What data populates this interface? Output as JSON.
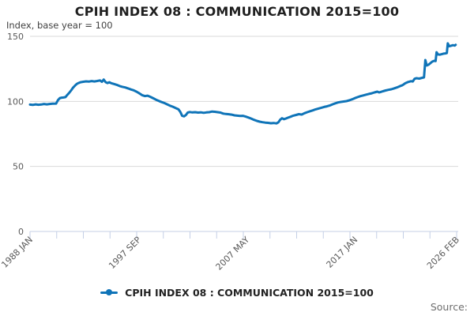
{
  "chart": {
    "title": "CPIH INDEX 08 : COMMUNICATION 2015=100",
    "subtitle": "Index, base year = 100",
    "legend_label": "CPIH INDEX 08 : COMMUNICATION 2015=100",
    "source_label": "Source:"
  },
  "chart_data": {
    "type": "line",
    "title": "CPIH INDEX 08 : COMMUNICATION 2015=100",
    "subtitle": "Index, base year = 100",
    "xlabel": "",
    "ylabel": "Index, base year = 100",
    "legend_entries": [
      "CPIH INDEX 08 : COMMUNICATION 2015=100"
    ],
    "legend_position": "bottom-center",
    "grid": "horizontal-only",
    "xlim": [
      1988.0,
      2026.083
    ],
    "ylim": [
      0,
      150
    ],
    "yticks": [
      0,
      50,
      100,
      150
    ],
    "xticks": [
      {
        "label": "1988 JAN",
        "year": 1988.0
      },
      {
        "label": "1997 SEP",
        "year": 1997.667
      },
      {
        "label": "2007 MAY",
        "year": 2007.333
      },
      {
        "label": "2017 JAN",
        "year": 2017.0
      },
      {
        "label": "2026 FEB",
        "year": 2026.083
      }
    ],
    "minor_tick_count": 17,
    "colors": {
      "line": "#0f74b8",
      "grid": "#d9d9d9",
      "axis": "#c4cfe6",
      "tick_text": "#595959",
      "title_text": "#1f1f1f"
    },
    "series": [
      {
        "name": "CPIH INDEX 08 : COMMUNICATION 2015=100",
        "points": [
          [
            1988.0,
            97.5
          ],
          [
            1988.25,
            97.3
          ],
          [
            1988.5,
            97.7
          ],
          [
            1988.75,
            97.4
          ],
          [
            1989.0,
            97.6
          ],
          [
            1989.25,
            98.0
          ],
          [
            1989.5,
            97.7
          ],
          [
            1989.75,
            98.0
          ],
          [
            1990.0,
            98.2
          ],
          [
            1990.33,
            98.3
          ],
          [
            1990.5,
            101.0
          ],
          [
            1990.67,
            102.6
          ],
          [
            1990.83,
            102.9
          ],
          [
            1991.0,
            103.0
          ],
          [
            1991.17,
            103.3
          ],
          [
            1991.33,
            105.0
          ],
          [
            1991.5,
            106.6
          ],
          [
            1991.67,
            108.4
          ],
          [
            1991.83,
            110.4
          ],
          [
            1992.0,
            112.0
          ],
          [
            1992.17,
            113.4
          ],
          [
            1992.33,
            114.1
          ],
          [
            1992.5,
            114.7
          ],
          [
            1992.75,
            115.1
          ],
          [
            1993.0,
            115.4
          ],
          [
            1993.25,
            115.2
          ],
          [
            1993.5,
            115.6
          ],
          [
            1993.75,
            115.3
          ],
          [
            1994.0,
            115.7
          ],
          [
            1994.25,
            116.1
          ],
          [
            1994.42,
            115.0
          ],
          [
            1994.58,
            116.8
          ],
          [
            1994.75,
            114.8
          ],
          [
            1994.92,
            114.1
          ],
          [
            1995.08,
            114.7
          ],
          [
            1995.25,
            114.0
          ],
          [
            1995.5,
            113.4
          ],
          [
            1995.75,
            112.7
          ],
          [
            1996.0,
            111.8
          ],
          [
            1996.25,
            111.2
          ],
          [
            1996.5,
            110.7
          ],
          [
            1996.75,
            110.0
          ],
          [
            1997.0,
            109.2
          ],
          [
            1997.25,
            108.5
          ],
          [
            1997.5,
            107.5
          ],
          [
            1997.75,
            106.2
          ],
          [
            1998.0,
            104.8
          ],
          [
            1998.25,
            104.1
          ],
          [
            1998.5,
            104.4
          ],
          [
            1998.75,
            103.5
          ],
          [
            1999.0,
            102.4
          ],
          [
            1999.25,
            101.3
          ],
          [
            1999.5,
            100.3
          ],
          [
            1999.75,
            99.5
          ],
          [
            2000.0,
            98.7
          ],
          [
            2000.25,
            97.7
          ],
          [
            2000.5,
            96.7
          ],
          [
            2000.75,
            95.9
          ],
          [
            2001.0,
            94.9
          ],
          [
            2001.25,
            93.9
          ],
          [
            2001.42,
            91.8
          ],
          [
            2001.58,
            88.9
          ],
          [
            2001.75,
            88.5
          ],
          [
            2001.92,
            89.6
          ],
          [
            2002.08,
            91.4
          ],
          [
            2002.25,
            91.8
          ],
          [
            2002.5,
            91.5
          ],
          [
            2002.75,
            91.7
          ],
          [
            2003.0,
            91.4
          ],
          [
            2003.25,
            91.6
          ],
          [
            2003.5,
            91.2
          ],
          [
            2003.75,
            91.5
          ],
          [
            2004.0,
            91.7
          ],
          [
            2004.25,
            92.2
          ],
          [
            2004.5,
            92.0
          ],
          [
            2004.75,
            91.7
          ],
          [
            2005.0,
            91.4
          ],
          [
            2005.25,
            90.6
          ],
          [
            2005.5,
            90.3
          ],
          [
            2005.75,
            90.1
          ],
          [
            2006.0,
            89.8
          ],
          [
            2006.25,
            89.3
          ],
          [
            2006.5,
            89.0
          ],
          [
            2006.75,
            88.8
          ],
          [
            2007.0,
            88.9
          ],
          [
            2007.25,
            88.3
          ],
          [
            2007.5,
            87.6
          ],
          [
            2007.75,
            86.8
          ],
          [
            2008.0,
            85.8
          ],
          [
            2008.25,
            85.0
          ],
          [
            2008.5,
            84.4
          ],
          [
            2008.75,
            84.0
          ],
          [
            2009.0,
            83.7
          ],
          [
            2009.25,
            83.5
          ],
          [
            2009.5,
            83.2
          ],
          [
            2009.75,
            83.4
          ],
          [
            2010.0,
            83.1
          ],
          [
            2010.17,
            83.9
          ],
          [
            2010.33,
            85.9
          ],
          [
            2010.5,
            87.0
          ],
          [
            2010.67,
            86.3
          ],
          [
            2010.83,
            86.8
          ],
          [
            2011.0,
            87.4
          ],
          [
            2011.25,
            88.2
          ],
          [
            2011.5,
            89.0
          ],
          [
            2011.75,
            89.6
          ],
          [
            2012.0,
            90.2
          ],
          [
            2012.25,
            89.9
          ],
          [
            2012.5,
            90.9
          ],
          [
            2012.75,
            91.7
          ],
          [
            2013.0,
            92.4
          ],
          [
            2013.25,
            93.1
          ],
          [
            2013.5,
            93.9
          ],
          [
            2013.75,
            94.5
          ],
          [
            2014.0,
            95.1
          ],
          [
            2014.25,
            95.7
          ],
          [
            2014.5,
            96.2
          ],
          [
            2014.75,
            96.8
          ],
          [
            2015.0,
            97.7
          ],
          [
            2015.25,
            98.5
          ],
          [
            2015.5,
            99.2
          ],
          [
            2015.75,
            99.6
          ],
          [
            2016.0,
            99.9
          ],
          [
            2016.25,
            100.2
          ],
          [
            2016.5,
            100.8
          ],
          [
            2016.75,
            101.6
          ],
          [
            2017.0,
            102.5
          ],
          [
            2017.25,
            103.3
          ],
          [
            2017.5,
            104.0
          ],
          [
            2017.75,
            104.6
          ],
          [
            2018.0,
            105.2
          ],
          [
            2018.25,
            105.7
          ],
          [
            2018.5,
            106.2
          ],
          [
            2018.75,
            106.9
          ],
          [
            2019.0,
            107.5
          ],
          [
            2019.17,
            106.9
          ],
          [
            2019.33,
            107.3
          ],
          [
            2019.5,
            107.8
          ],
          [
            2019.75,
            108.4
          ],
          [
            2020.0,
            108.9
          ],
          [
            2020.25,
            109.3
          ],
          [
            2020.5,
            110.0
          ],
          [
            2020.75,
            110.7
          ],
          [
            2021.0,
            111.6
          ],
          [
            2021.25,
            112.5
          ],
          [
            2021.5,
            113.9
          ],
          [
            2021.75,
            114.9
          ],
          [
            2022.0,
            115.5
          ],
          [
            2022.17,
            115.3
          ],
          [
            2022.33,
            117.4
          ],
          [
            2022.5,
            117.8
          ],
          [
            2022.75,
            117.5
          ],
          [
            2023.0,
            118.1
          ],
          [
            2023.17,
            118.4
          ],
          [
            2023.29,
            131.8
          ],
          [
            2023.42,
            127.6
          ],
          [
            2023.58,
            128.2
          ],
          [
            2023.75,
            129.4
          ],
          [
            2023.92,
            130.6
          ],
          [
            2024.08,
            131.2
          ],
          [
            2024.21,
            131.0
          ],
          [
            2024.29,
            137.8
          ],
          [
            2024.42,
            136.1
          ],
          [
            2024.58,
            135.9
          ],
          [
            2024.75,
            136.3
          ],
          [
            2024.92,
            136.7
          ],
          [
            2025.08,
            136.9
          ],
          [
            2025.21,
            137.1
          ],
          [
            2025.29,
            144.6
          ],
          [
            2025.42,
            142.4
          ],
          [
            2025.58,
            142.8
          ],
          [
            2025.75,
            143.2
          ],
          [
            2025.92,
            142.9
          ],
          [
            2026.0,
            143.5
          ]
        ]
      }
    ]
  }
}
